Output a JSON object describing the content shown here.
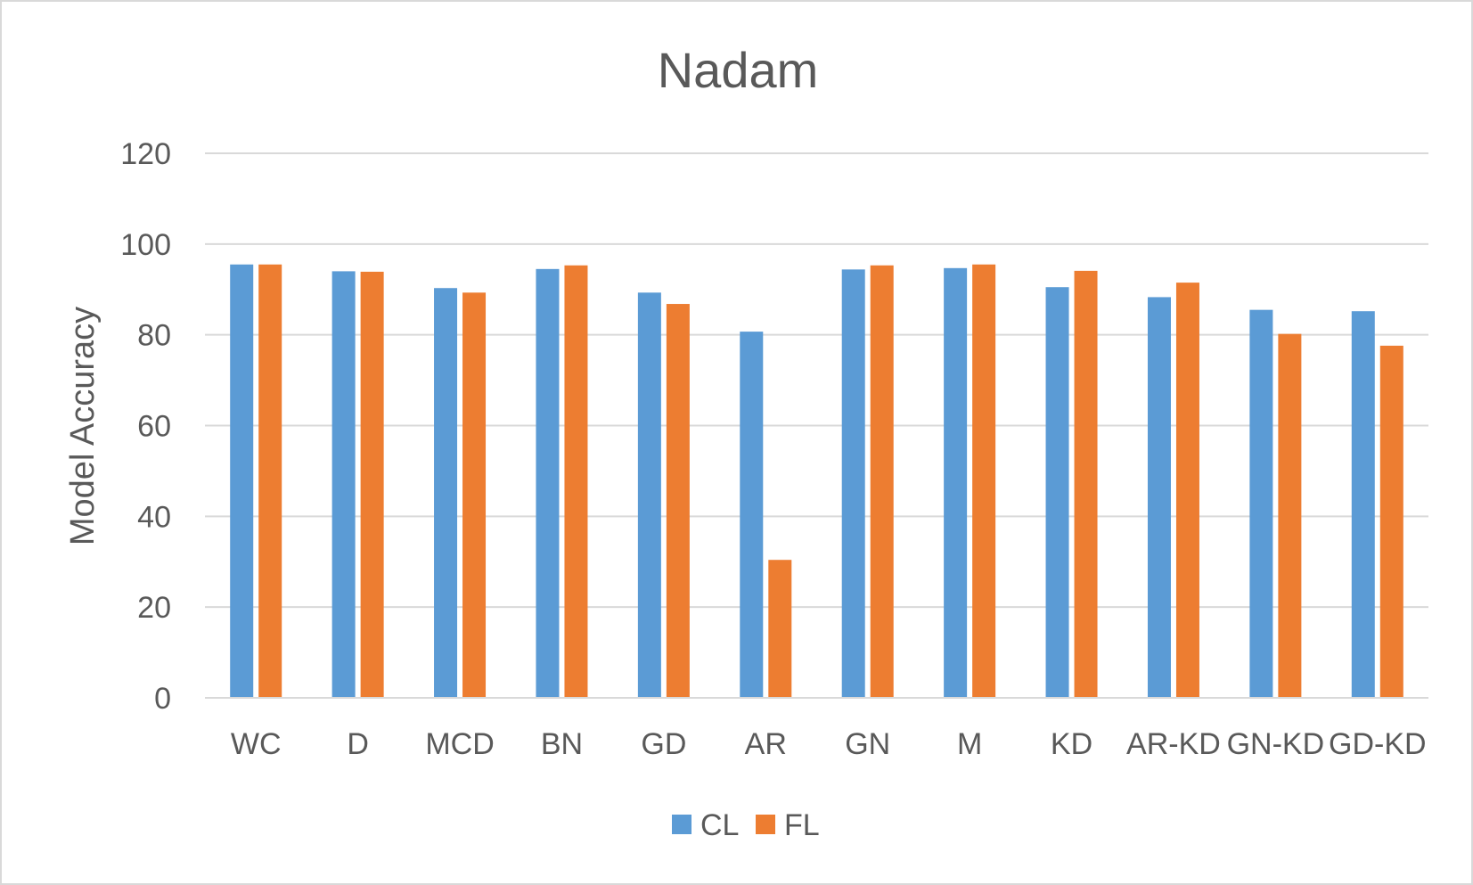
{
  "chart_data": {
    "type": "bar",
    "title": "Nadam",
    "xlabel": "",
    "ylabel": "Model Accuracy",
    "ylim": [
      0,
      120
    ],
    "yticks": [
      0,
      20,
      40,
      60,
      80,
      100,
      120
    ],
    "grid": true,
    "legend_position": "bottom",
    "categories": [
      "WC",
      "D",
      "MCD",
      "BN",
      "GD",
      "AR",
      "GN",
      "M",
      "KD",
      "AR-KD",
      "GN-KD",
      "GD-KD"
    ],
    "series": [
      {
        "name": "CL",
        "color": "#5b9bd5",
        "values": [
          95.5,
          94,
          90.3,
          94.5,
          89.3,
          80.7,
          94.4,
          94.7,
          90.5,
          88.3,
          85.5,
          85.2
        ]
      },
      {
        "name": "FL",
        "color": "#ed7d31",
        "values": [
          95.5,
          93.9,
          89.3,
          95.3,
          86.8,
          30.4,
          95.3,
          95.5,
          94.1,
          91.5,
          80.2,
          77.6
        ]
      }
    ]
  }
}
